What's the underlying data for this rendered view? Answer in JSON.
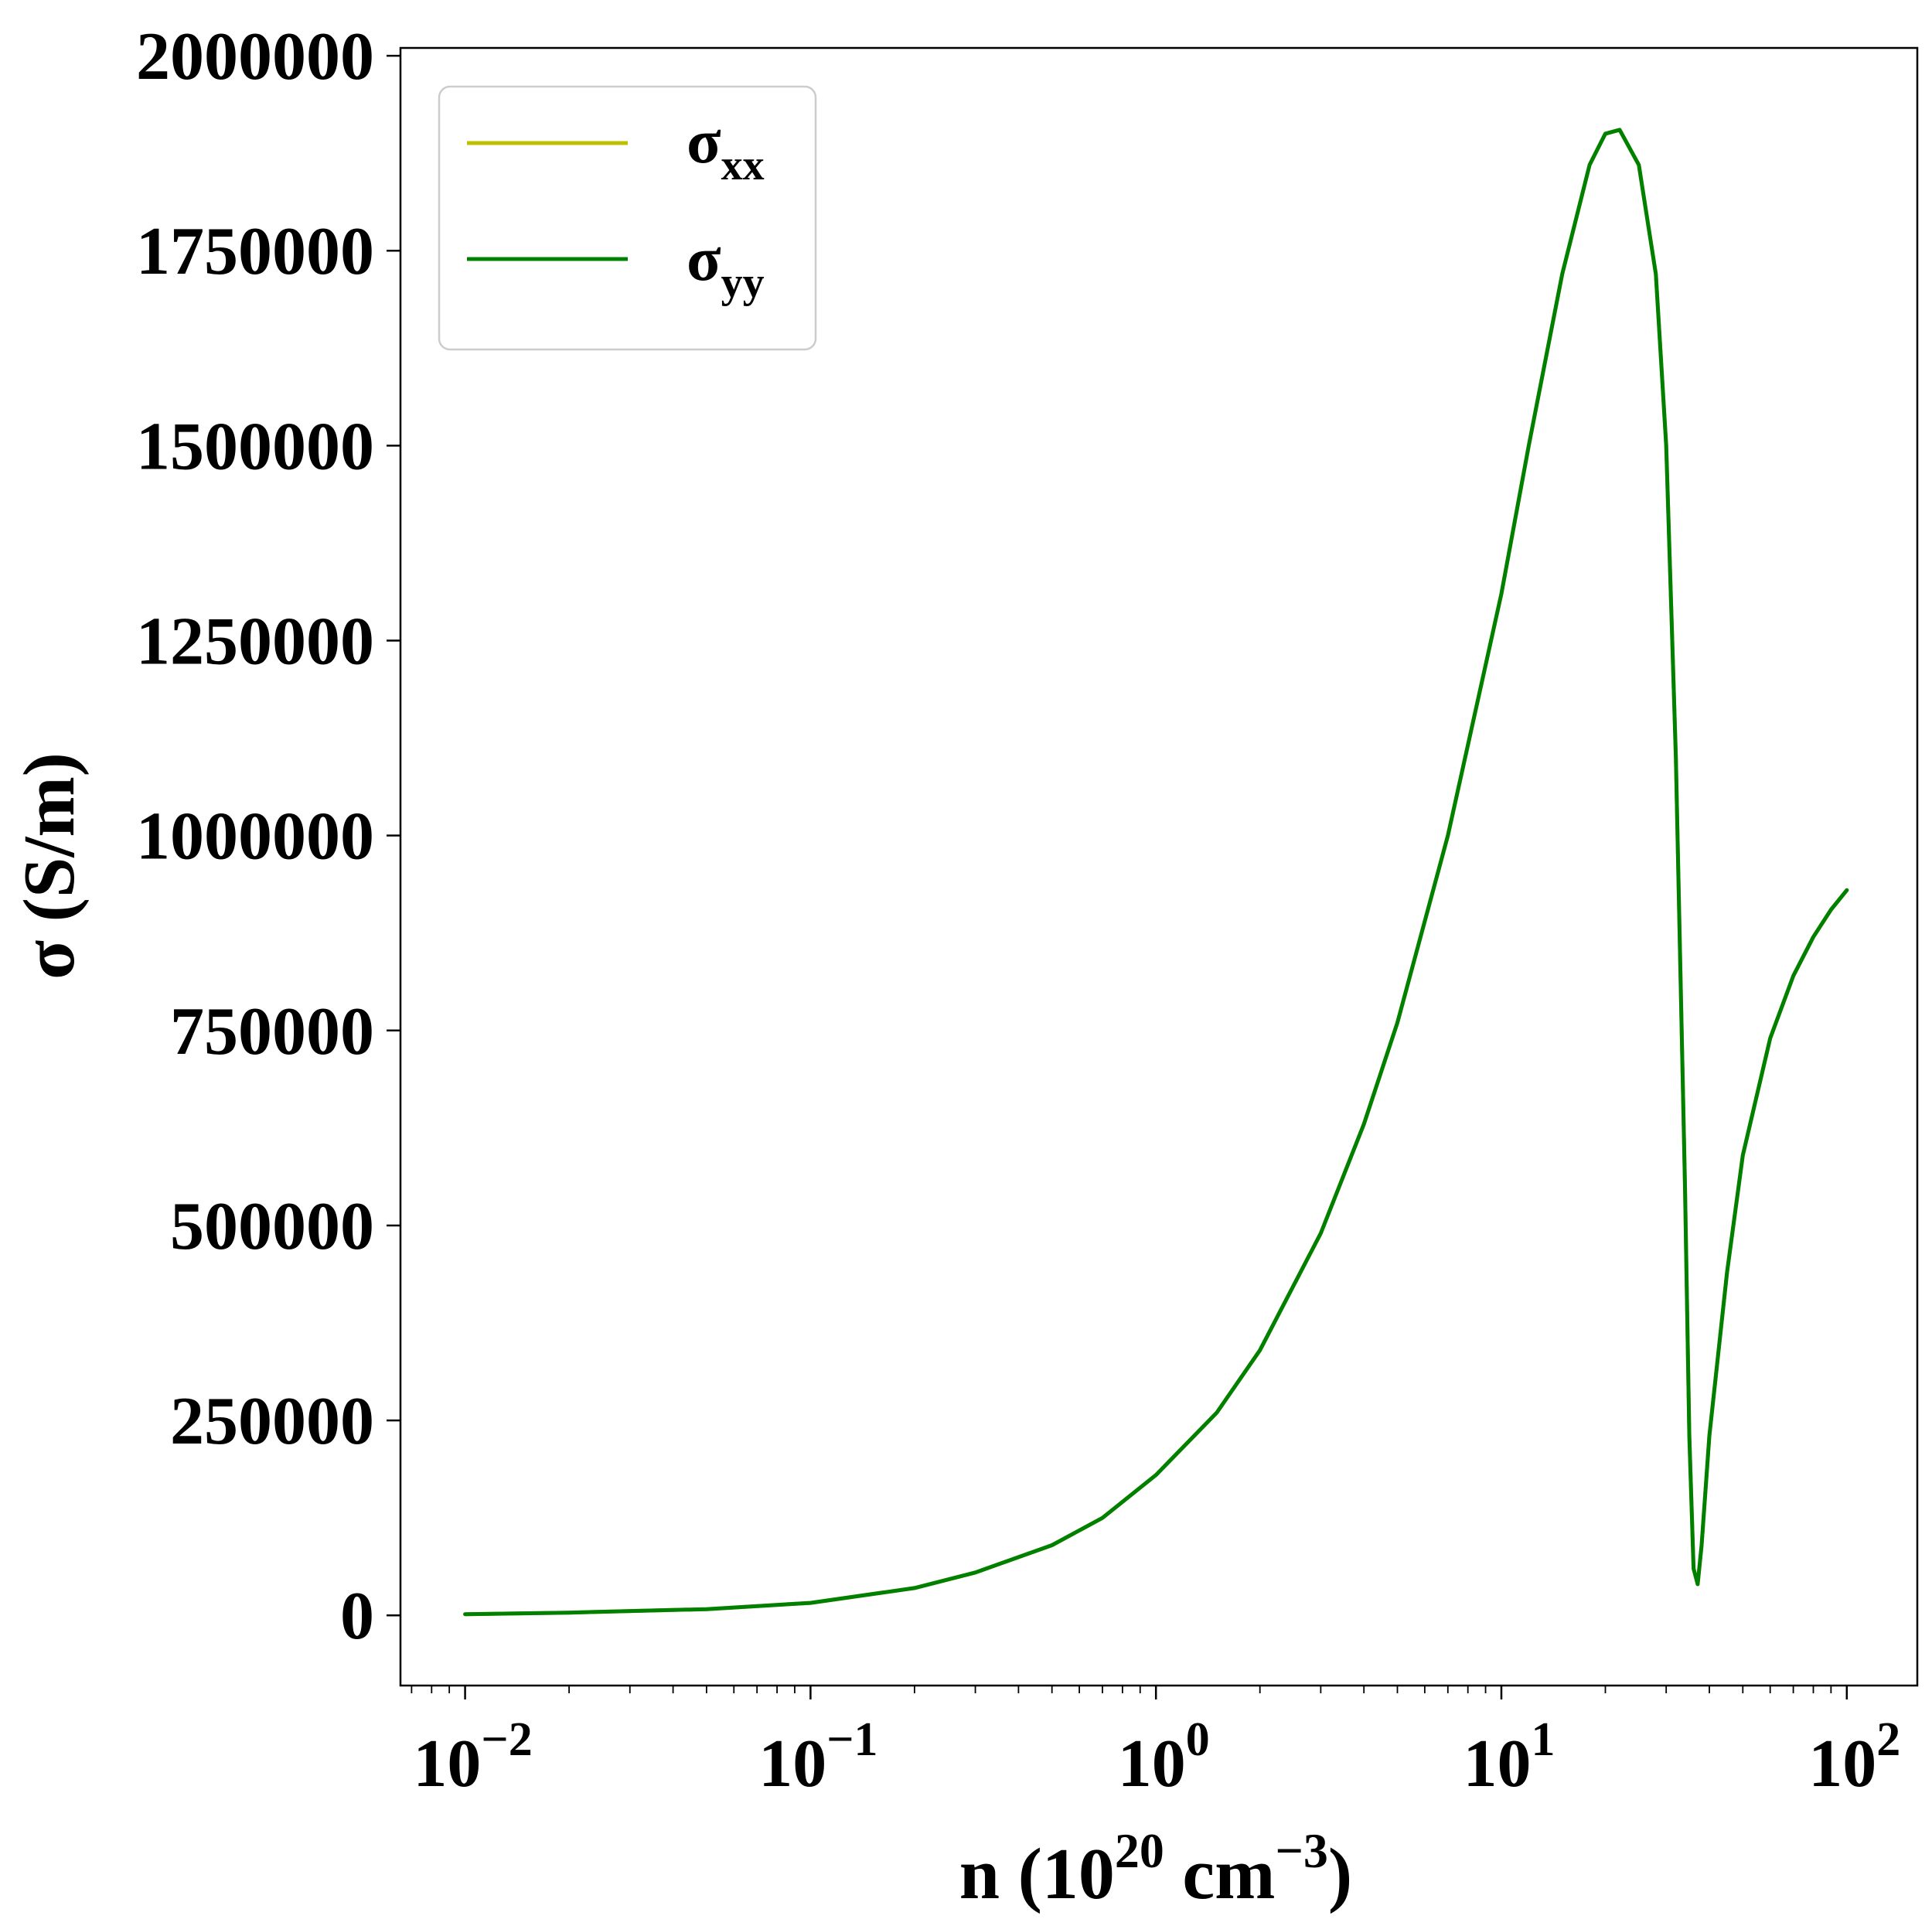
{
  "chart_data": {
    "type": "line",
    "title": "",
    "xscale": "log",
    "xlim": [
      0.0065,
      160
    ],
    "ylim": [
      -90000,
      2010000
    ],
    "grid": false,
    "legend_position": "top-left",
    "xlabel": {
      "main": "n (10",
      "exp1": "20",
      "mid": " cm",
      "exp2": "−3",
      "end": ")"
    },
    "ylabel": "σ (S/m)",
    "xticks": [
      {
        "value": 0.01,
        "base": "10",
        "exp": "−2"
      },
      {
        "value": 0.1,
        "base": "10",
        "exp": "−1"
      },
      {
        "value": 1,
        "base": "10",
        "exp": "0"
      },
      {
        "value": 10,
        "base": "10",
        "exp": "1"
      },
      {
        "value": 100,
        "base": "10",
        "exp": "2"
      }
    ],
    "yticks": [
      {
        "value": 0,
        "label": "0"
      },
      {
        "value": 250000,
        "label": "250000"
      },
      {
        "value": 500000,
        "label": "500000"
      },
      {
        "value": 750000,
        "label": "750000"
      },
      {
        "value": 1000000,
        "label": "1000000"
      },
      {
        "value": 1250000,
        "label": "1250000"
      },
      {
        "value": 1500000,
        "label": "1500000"
      },
      {
        "value": 1750000,
        "label": "1750000"
      },
      {
        "value": 2000000,
        "label": "2000000"
      }
    ],
    "series": [
      {
        "name": "σ",
        "subscript": "xx",
        "color": "#bfbf00",
        "x": [
          0.01,
          0.02,
          0.05,
          0.1,
          0.2,
          0.3,
          0.5,
          0.7,
          1,
          1.5,
          2,
          3,
          4,
          5,
          7,
          10,
          12,
          15,
          18,
          20,
          22,
          25,
          28,
          30,
          32,
          34,
          35,
          36,
          37,
          38,
          40,
          45,
          50,
          60,
          70,
          80,
          90,
          100
        ],
        "values": [
          1500,
          3500,
          8000,
          16000,
          35000,
          55000,
          90000,
          125000,
          180000,
          260000,
          340000,
          490000,
          630000,
          760000,
          1000000,
          1310000,
          1500000,
          1720000,
          1860000,
          1900000,
          1905000,
          1860000,
          1720000,
          1500000,
          1100000,
          550000,
          230000,
          60000,
          40000,
          90000,
          230000,
          440000,
          590000,
          740000,
          820000,
          870000,
          905000,
          930000
        ]
      },
      {
        "name": "σ",
        "subscript": "yy",
        "color": "#008000",
        "x": [
          0.01,
          0.02,
          0.05,
          0.1,
          0.2,
          0.3,
          0.5,
          0.7,
          1,
          1.5,
          2,
          3,
          4,
          5,
          7,
          10,
          12,
          15,
          18,
          20,
          22,
          25,
          28,
          30,
          32,
          34,
          35,
          36,
          37,
          38,
          40,
          45,
          50,
          60,
          70,
          80,
          90,
          100
        ],
        "values": [
          1500,
          3500,
          8000,
          16000,
          35000,
          55000,
          90000,
          125000,
          180000,
          260000,
          340000,
          490000,
          630000,
          760000,
          1000000,
          1310000,
          1500000,
          1720000,
          1860000,
          1900000,
          1905000,
          1860000,
          1720000,
          1500000,
          1100000,
          550000,
          230000,
          60000,
          40000,
          90000,
          230000,
          440000,
          590000,
          740000,
          820000,
          870000,
          905000,
          930000
        ]
      }
    ]
  }
}
